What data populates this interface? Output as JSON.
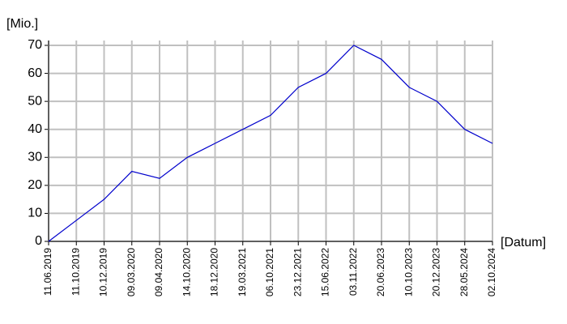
{
  "chart_data": {
    "type": "line",
    "y_label": "[Mio.]",
    "x_label": "[Datum]",
    "categories": [
      "11.06.2019",
      "11.10.2019",
      "10.12.2019",
      "09.03.2020",
      "09.04.2020",
      "14.10.2020",
      "18.12.2020",
      "19.03.2021",
      "06.10.2021",
      "23.12.2021",
      "15.06.2022",
      "03.11.2022",
      "20.06.2023",
      "10.10.2023",
      "20.12.2023",
      "28.05.2024",
      "02.10.2024"
    ],
    "series": [
      {
        "color": "#0000cc",
        "values": [
          0,
          7.5,
          15,
          25,
          22.5,
          30,
          35,
          40,
          45,
          55,
          60,
          70,
          65,
          55,
          50,
          40,
          35
        ]
      }
    ],
    "ylim": [
      0,
      70
    ],
    "yticks": [
      0,
      10,
      20,
      30,
      40,
      50,
      60,
      70
    ],
    "grid": true
  }
}
